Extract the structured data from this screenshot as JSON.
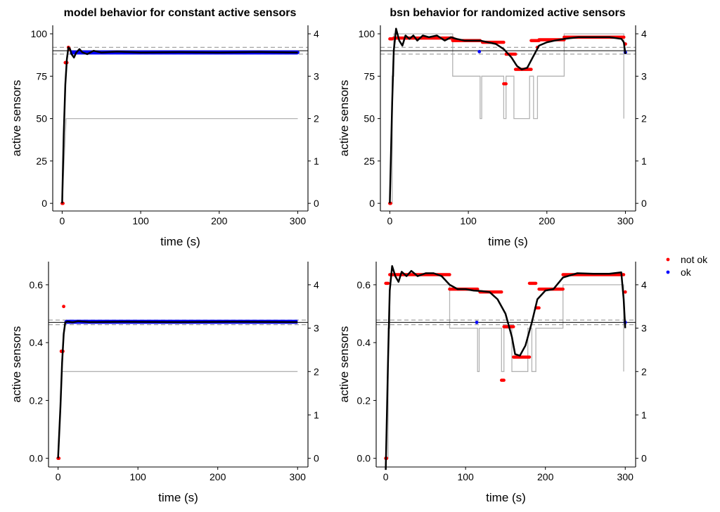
{
  "colors": {
    "not_ok": "#ff0000",
    "ok": "#0000ff",
    "fit": "#000000",
    "reference": "#000000",
    "band": "#999999",
    "active_set": "#b3b3b3"
  },
  "legend": {
    "placement": "right",
    "items": [
      {
        "label": "not ok",
        "color": "#ff0000"
      },
      {
        "label": "ok",
        "color": "#0000ff"
      }
    ]
  },
  "chart_data": [
    {
      "type": "scatter",
      "title": "model behavior for constant active sensors",
      "xlabel": "time (s)",
      "ylabel": "active sensors",
      "xlim": [
        -12,
        313
      ],
      "ylim": [
        -4.5,
        105
      ],
      "x_ticks": [
        0,
        100,
        200,
        300
      ],
      "y_ticks": [
        0,
        25,
        50,
        75,
        100
      ],
      "y2_ticks": [
        0,
        1,
        2,
        3,
        4
      ],
      "y2_scale": 25,
      "reference_line": 90,
      "band": [
        88,
        92
      ],
      "active_set": [
        [
          0,
          0
        ],
        [
          5,
          50
        ],
        [
          300,
          50
        ]
      ],
      "fit": [
        [
          0,
          0
        ],
        [
          2,
          40
        ],
        [
          4,
          70
        ],
        [
          6,
          85
        ],
        [
          8,
          92
        ],
        [
          10,
          91
        ],
        [
          12,
          88
        ],
        [
          15,
          86
        ],
        [
          18,
          89
        ],
        [
          22,
          91
        ],
        [
          26,
          89
        ],
        [
          32,
          88
        ],
        [
          40,
          90
        ],
        [
          50,
          89
        ],
        [
          70,
          89.5
        ],
        [
          100,
          89
        ],
        [
          150,
          89.2
        ],
        [
          200,
          89
        ],
        [
          250,
          89.3
        ],
        [
          300,
          89
        ]
      ],
      "points_not_ok": [
        [
          0,
          0
        ],
        [
          1,
          0
        ],
        [
          4,
          83
        ],
        [
          5,
          83
        ],
        [
          6,
          83
        ],
        [
          8,
          92
        ],
        [
          9,
          91
        ]
      ],
      "points_ok": [
        [
          12,
          89
        ],
        [
          300,
          89
        ]
      ],
      "ok_band": [
        10,
        300,
        89,
        1.2
      ]
    },
    {
      "type": "scatter",
      "title": "bsn behavior for randomized active sensors",
      "xlabel": "time (s)",
      "ylabel": "active sensors",
      "xlim": [
        -12,
        313
      ],
      "ylim": [
        -4.5,
        105
      ],
      "x_ticks": [
        0,
        100,
        200,
        300
      ],
      "y_ticks": [
        0,
        25,
        50,
        75,
        100
      ],
      "y2_ticks": [
        0,
        1,
        2,
        3,
        4
      ],
      "y2_scale": 25,
      "reference_line": 90,
      "band": [
        88,
        92
      ],
      "active_set": [
        [
          0,
          0
        ],
        [
          3,
          0
        ],
        [
          3,
          75
        ],
        [
          5,
          75
        ],
        [
          5,
          100
        ],
        [
          80,
          100
        ],
        [
          80,
          75
        ],
        [
          115,
          75
        ],
        [
          115,
          50
        ],
        [
          117,
          50
        ],
        [
          117,
          75
        ],
        [
          145,
          75
        ],
        [
          145,
          50
        ],
        [
          148,
          50
        ],
        [
          148,
          75
        ],
        [
          158,
          75
        ],
        [
          158,
          50
        ],
        [
          178,
          50
        ],
        [
          178,
          75
        ],
        [
          183,
          75
        ],
        [
          183,
          50
        ],
        [
          188,
          50
        ],
        [
          188,
          75
        ],
        [
          222,
          75
        ],
        [
          222,
          100
        ],
        [
          298,
          100
        ],
        [
          298,
          50
        ]
      ],
      "fit": [
        [
          0,
          0
        ],
        [
          3,
          60
        ],
        [
          5,
          90
        ],
        [
          8,
          103
        ],
        [
          12,
          96
        ],
        [
          16,
          93
        ],
        [
          20,
          99
        ],
        [
          25,
          97
        ],
        [
          30,
          99
        ],
        [
          35,
          96
        ],
        [
          42,
          99
        ],
        [
          50,
          98
        ],
        [
          60,
          99
        ],
        [
          70,
          96
        ],
        [
          78,
          98
        ],
        [
          85,
          97
        ],
        [
          95,
          96
        ],
        [
          105,
          96
        ],
        [
          115,
          96
        ],
        [
          125,
          95
        ],
        [
          135,
          94
        ],
        [
          145,
          91
        ],
        [
          155,
          86
        ],
        [
          162,
          81
        ],
        [
          168,
          79
        ],
        [
          175,
          80
        ],
        [
          183,
          87
        ],
        [
          190,
          93
        ],
        [
          200,
          95
        ],
        [
          210,
          96
        ],
        [
          222,
          97
        ],
        [
          240,
          98
        ],
        [
          260,
          98
        ],
        [
          280,
          98
        ],
        [
          295,
          97
        ],
        [
          298,
          95
        ],
        [
          300,
          88
        ]
      ],
      "segments_not_ok": [
        [
          3,
          0,
          97
        ],
        [
          5,
          80,
          97.5
        ],
        [
          80,
          115,
          96
        ],
        [
          118,
          145,
          95
        ],
        [
          145,
          148,
          70.5
        ],
        [
          148,
          160,
          88
        ],
        [
          160,
          180,
          79
        ],
        [
          180,
          190,
          96
        ],
        [
          190,
          222,
          96.5
        ],
        [
          222,
          298,
          98
        ]
      ],
      "points_not_ok": [
        [
          0,
          0
        ],
        [
          1,
          0
        ],
        [
          188,
          92
        ],
        [
          300,
          94
        ]
      ],
      "points_ok": [
        [
          114,
          89.5
        ],
        [
          300,
          89
        ]
      ]
    },
    {
      "type": "scatter",
      "title": "",
      "xlabel": "time (s)",
      "ylabel": "active sensors",
      "xlim": [
        -12,
        313
      ],
      "ylim": [
        -0.03,
        0.68
      ],
      "x_ticks": [
        0,
        100,
        200,
        300
      ],
      "y_ticks": [
        0.0,
        0.2,
        0.4,
        0.6
      ],
      "y_tick_labels": [
        "0.0",
        "0.2",
        "0.4",
        "0.6"
      ],
      "y2_ticks": [
        0,
        1,
        2,
        3,
        4
      ],
      "y2_scale": 0.15,
      "reference_line": 0.47,
      "band": [
        0.462,
        0.478
      ],
      "active_set": [
        [
          5,
          0.3
        ],
        [
          300,
          0.3
        ]
      ],
      "fit": [
        [
          0,
          0
        ],
        [
          3,
          0.18
        ],
        [
          5,
          0.33
        ],
        [
          7,
          0.43
        ],
        [
          9,
          0.47
        ],
        [
          12,
          0.473
        ],
        [
          18,
          0.47
        ],
        [
          25,
          0.474
        ],
        [
          40,
          0.471
        ],
        [
          80,
          0.472
        ],
        [
          150,
          0.471
        ],
        [
          220,
          0.472
        ],
        [
          300,
          0.471
        ]
      ],
      "points_not_ok": [
        [
          0,
          0
        ],
        [
          1,
          0
        ],
        [
          4,
          0.37
        ],
        [
          5,
          0.37
        ],
        [
          6,
          0.37
        ],
        [
          7,
          0.525
        ]
      ],
      "points_ok": [
        [
          10,
          0.472
        ]
      ],
      "ok_band": [
        10,
        300,
        0.472,
        0.007
      ]
    },
    {
      "type": "scatter",
      "title": "",
      "xlabel": "time (s)",
      "ylabel": "active sensors",
      "xlim": [
        -12,
        313
      ],
      "ylim": [
        -0.03,
        0.68
      ],
      "x_ticks": [
        0,
        100,
        200,
        300
      ],
      "y_ticks": [
        0.0,
        0.2,
        0.4,
        0.6
      ],
      "y_tick_labels": [
        "0.0",
        "0.2",
        "0.4",
        "0.6"
      ],
      "y2_ticks": [
        0,
        1,
        2,
        3,
        4
      ],
      "y2_scale": 0.15,
      "reference_line": 0.47,
      "band": [
        0.462,
        0.478
      ],
      "active_set": [
        [
          0,
          0
        ],
        [
          3,
          0
        ],
        [
          3,
          0.45
        ],
        [
          5,
          0.45
        ],
        [
          5,
          0.6
        ],
        [
          80,
          0.6
        ],
        [
          80,
          0.45
        ],
        [
          115,
          0.45
        ],
        [
          115,
          0.3
        ],
        [
          117,
          0.3
        ],
        [
          117,
          0.45
        ],
        [
          145,
          0.45
        ],
        [
          145,
          0.3
        ],
        [
          148,
          0.3
        ],
        [
          148,
          0.45
        ],
        [
          158,
          0.45
        ],
        [
          158,
          0.3
        ],
        [
          178,
          0.3
        ],
        [
          178,
          0.45
        ],
        [
          183,
          0.45
        ],
        [
          183,
          0.3
        ],
        [
          188,
          0.3
        ],
        [
          188,
          0.45
        ],
        [
          222,
          0.45
        ],
        [
          222,
          0.6
        ],
        [
          298,
          0.6
        ],
        [
          298,
          0.3
        ]
      ],
      "fit": [
        [
          0,
          -0.04
        ],
        [
          3,
          0.35
        ],
        [
          5,
          0.58
        ],
        [
          8,
          0.665
        ],
        [
          12,
          0.63
        ],
        [
          16,
          0.61
        ],
        [
          20,
          0.645
        ],
        [
          26,
          0.63
        ],
        [
          32,
          0.648
        ],
        [
          40,
          0.63
        ],
        [
          50,
          0.64
        ],
        [
          60,
          0.64
        ],
        [
          70,
          0.63
        ],
        [
          80,
          0.6
        ],
        [
          90,
          0.585
        ],
        [
          100,
          0.585
        ],
        [
          110,
          0.58
        ],
        [
          120,
          0.578
        ],
        [
          130,
          0.575
        ],
        [
          140,
          0.55
        ],
        [
          150,
          0.5
        ],
        [
          158,
          0.42
        ],
        [
          162,
          0.36
        ],
        [
          168,
          0.355
        ],
        [
          175,
          0.39
        ],
        [
          183,
          0.47
        ],
        [
          190,
          0.55
        ],
        [
          200,
          0.58
        ],
        [
          210,
          0.585
        ],
        [
          222,
          0.625
        ],
        [
          240,
          0.64
        ],
        [
          260,
          0.638
        ],
        [
          280,
          0.638
        ],
        [
          295,
          0.643
        ],
        [
          298,
          0.55
        ],
        [
          300,
          0.45
        ]
      ],
      "segments_not_ok": [
        [
          3,
          0,
          0.605
        ],
        [
          5,
          80,
          0.635
        ],
        [
          80,
          115,
          0.585
        ],
        [
          118,
          145,
          0.575
        ],
        [
          145,
          148,
          0.27
        ],
        [
          148,
          160,
          0.455
        ],
        [
          160,
          180,
          0.35
        ],
        [
          180,
          188,
          0.605
        ],
        [
          188,
          192,
          0.52
        ],
        [
          192,
          222,
          0.585
        ],
        [
          222,
          298,
          0.635
        ]
      ],
      "points_not_ok": [
        [
          0,
          0
        ],
        [
          1,
          0
        ],
        [
          300,
          0.575
        ]
      ],
      "points_ok": [
        [
          114,
          0.47
        ],
        [
          300,
          0.47
        ]
      ]
    }
  ]
}
